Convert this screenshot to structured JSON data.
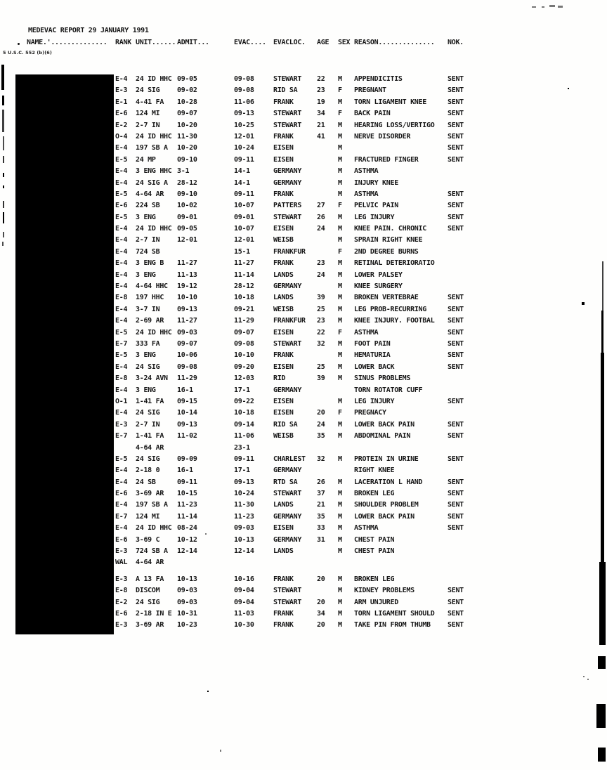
{
  "document": {
    "title": "MEDEVAC REPORT 29 JANUARY 1991",
    "citation": "5 U.S.C. 552 (b)(6)"
  },
  "header": {
    "name": "NAME.'..............",
    "rank": "RANK",
    "unit": "UNIT......",
    "admit": "ADMIT...",
    "evac": "EVAC....",
    "evacloc": "EVACLOC.",
    "age": "AGE",
    "sex": "SEX",
    "reason": "REASON..............",
    "nok": "NOK."
  },
  "table": {
    "columns": [
      "RANK",
      "UNIT",
      "ADMIT",
      "EVAC",
      "EVACLOC",
      "AGE",
      "SEX",
      "REASON",
      "NOK"
    ],
    "rows": [
      [
        "E-4",
        "24 ID HHC",
        "09-05",
        "09-08",
        "STEWART",
        "22",
        "M",
        "APPENDICITIS",
        "SENT"
      ],
      [
        "E-3",
        "24 SIG",
        "09-02",
        "09-08",
        "RID SA",
        "23",
        "F",
        "PREGNANT",
        "SENT"
      ],
      [
        "E-1",
        "4-41 FA",
        "10-28",
        "11-06",
        "FRANK",
        "19",
        "M",
        "TORN LIGAMENT KNEE",
        "SENT"
      ],
      [
        "E-6",
        "124 MI",
        "09-07",
        "09-13",
        "STEWART",
        "34",
        "F",
        "BACK PAIN",
        "SENT"
      ],
      [
        "E-2",
        "2-7 IN",
        "10-20",
        "10-25",
        "STEWART",
        "21",
        "M",
        "HEARING LOSS/VERTIGO",
        "SENT"
      ],
      [
        "O-4",
        "24 ID HHC",
        "11-30",
        "12-01",
        "FRANK",
        "41",
        "M",
        "NERVE DISORDER",
        "SENT"
      ],
      [
        "E-4",
        "197 SB A",
        "10-20",
        "10-24",
        "EISEN",
        "",
        "M",
        "",
        "SENT"
      ],
      [
        "E-5",
        "24 MP",
        "09-10",
        "09-11",
        "EISEN",
        "",
        "M",
        "FRACTURED FINGER",
        "SENT"
      ],
      [
        "E-4",
        "3 ENG HHC",
        "3-1",
        "14-1",
        "GERMANY",
        "",
        "M",
        "ASTHMA",
        ""
      ],
      [
        "E-4",
        "24 SIG A",
        "28-12",
        "14-1",
        "GERMANY",
        "",
        "M",
        "INJURY KNEE",
        ""
      ],
      [
        "E-5",
        "4-64 AR",
        "09-10",
        "09-11",
        "FRANK",
        "",
        "M",
        "ASTHMA",
        "SENT"
      ],
      [
        "E-6",
        "224 SB",
        "10-02",
        "10-07",
        "PATTERS",
        "27",
        "F",
        "PELVIC PAIN",
        "SENT"
      ],
      [
        "E-5",
        "3 ENG",
        "09-01",
        "09-01",
        "STEWART",
        "26",
        "M",
        "LEG INJURY",
        "SENT"
      ],
      [
        "E-4",
        "24 ID HHC",
        "09-05",
        "10-07",
        "EISEN",
        "24",
        "M",
        "KNEE PAIN. CHRONIC",
        "SENT"
      ],
      [
        "E-4",
        "2-7 IN",
        "12-01",
        "12-01",
        "WEISB",
        "",
        "M",
        "SPRAIN RIGHT KNEE",
        ""
      ],
      [
        "E-4",
        "724 SB",
        "",
        "15-1",
        "FRANKFUR",
        "",
        "F",
        "2ND DEGREE BURNS",
        ""
      ],
      [
        "E-4",
        "3 ENG B",
        "11-27",
        "11-27",
        "FRANK",
        "23",
        "M",
        "RETINAL DETERIORATIO",
        ""
      ],
      [
        "E-4",
        "3 ENG",
        "11-13",
        "11-14",
        "LANDS",
        "24",
        "M",
        "LOWER PALSEY",
        ""
      ],
      [
        "E-4",
        "4-64 HHC",
        "19-12",
        "28-12",
        "GERMANY",
        "",
        "M",
        "KNEE SURGERY",
        ""
      ],
      [
        "E-8",
        "197 HHC",
        "10-10",
        "10-18",
        "LANDS",
        "39",
        "M",
        "BROKEN VERTEBRAE",
        "SENT"
      ],
      [
        "E-4",
        "3-7 IN",
        "09-13",
        "09-21",
        "WEISB",
        "25",
        "M",
        "LEG PROB-RECURRING",
        "SENT"
      ],
      [
        "E-4",
        "2-69 AR",
        "11-27",
        "11-29",
        "FRANKFUR",
        "23",
        "M",
        "KNEE INJURY. FOOTBAL",
        "SENT"
      ],
      [
        "E-5",
        "24 ID HHC",
        "09-03",
        "09-07",
        "EISEN",
        "22",
        "F",
        "ASTHMA",
        "SENT"
      ],
      [
        "E-7",
        "333 FA",
        "09-07",
        "09-08",
        "STEWART",
        "32",
        "M",
        "FOOT PAIN",
        "SENT"
      ],
      [
        "E-5",
        "3 ENG",
        "10-06",
        "10-10",
        "FRANK",
        "",
        "M",
        "HEMATURIA",
        "SENT"
      ],
      [
        "E-4",
        "24 SIG",
        "09-08",
        "09-20",
        "EISEN",
        "25",
        "M",
        "LOWER BACK",
        "SENT"
      ],
      [
        "E-8",
        "3-24 AVN",
        "11-29",
        "12-03",
        "RID",
        "39",
        "M",
        "SINUS PROBLEMS",
        ""
      ],
      [
        "E-4",
        "3 ENG",
        "16-1",
        "17-1",
        "GERMANY",
        "",
        "",
        "TORN ROTATOR CUFF",
        ""
      ],
      [
        "O-1",
        "1-41 FA",
        "09-15",
        "09-22",
        "EISEN",
        "",
        "M",
        "LEG INJURY",
        "SENT"
      ],
      [
        "E-4",
        "24 SIG",
        "10-14",
        "10-18",
        "EISEN",
        "20",
        "F",
        "PREGNACY",
        ""
      ],
      [
        "E-3",
        "2-7 IN",
        "09-13",
        "09-14",
        "RID SA",
        "24",
        "M",
        "LOWER BACK PAIN",
        "SENT"
      ],
      [
        "E-7",
        "1-41 FA",
        "11-02",
        "11-06",
        "WEISB",
        "35",
        "M",
        "ABDOMINAL PAIN",
        "SENT"
      ],
      [
        "",
        "4-64 AR",
        "",
        "23-1",
        "",
        "",
        "",
        "",
        ""
      ],
      [
        "E-5",
        "24 SIG",
        "09-09",
        "09-11",
        "CHARLEST",
        "32",
        "M",
        "PROTEIN IN URINE",
        "SENT"
      ],
      [
        "E-4",
        "2-18 0",
        "16-1",
        "17-1",
        "GERMANY",
        "",
        "",
        "RIGHT KNEE",
        ""
      ],
      [
        "E-4",
        "24 SB",
        "09-11",
        "09-13",
        "RTD SA",
        "26",
        "M",
        "LACERATION L HAND",
        "SENT"
      ],
      [
        "E-6",
        "3-69 AR",
        "10-15",
        "10-24",
        "STEWART",
        "37",
        "M",
        "BROKEN LEG",
        "SENT"
      ],
      [
        "E-4",
        "197 SB A",
        "11-23",
        "11-30",
        "LANDS",
        "21",
        "M",
        "SHOULDER PROBLEM",
        "SENT"
      ],
      [
        "E-7",
        "124 MI",
        "11-14",
        "11-23",
        "GERMANY",
        "35",
        "M",
        "LOWER BACK PAIN",
        "SENT"
      ],
      [
        "E-4",
        "24 ID HHC",
        "08-24",
        "09-03",
        "EISEN",
        "33",
        "M",
        "ASTHMA",
        "SENT"
      ],
      [
        "E-6",
        "3-69 C",
        "10-12",
        "10-13",
        "GERMANY",
        "31",
        "M",
        "CHEST PAIN",
        ""
      ],
      [
        "E-3",
        "724 SB A",
        "12-14",
        "12-14",
        "LANDS",
        "",
        "M",
        "CHEST PAIN",
        ""
      ],
      [
        "WAL",
        "4-64 AR",
        "",
        "",
        "",
        "",
        "",
        "",
        ""
      ],
      [
        "E-3",
        "A 13 FA",
        "10-13",
        "10-16",
        "FRANK",
        "20",
        "M",
        "BROKEN LEG",
        ""
      ],
      [
        "E-8",
        "DISCOM",
        "09-03",
        "09-04",
        "STEWART",
        "",
        "M",
        "KIDNEY PROBLEMS",
        "SENT"
      ],
      [
        "E-2",
        "24 SIG",
        "09-03",
        "09-04",
        "STEWART",
        "20",
        "M",
        "ARM UNJURED",
        "SENT"
      ],
      [
        "E-6",
        "2-18 IN E",
        "10-31",
        "11-03",
        "FRANK",
        "34",
        "M",
        "TORN LIGAMENT SHOULD",
        "SENT"
      ],
      [
        "E-3",
        "3-69 AR",
        "10-23",
        "10-30",
        "FRANK",
        "20",
        "M",
        "TAKE PIN FROM THUMB",
        "SENT"
      ]
    ]
  }
}
